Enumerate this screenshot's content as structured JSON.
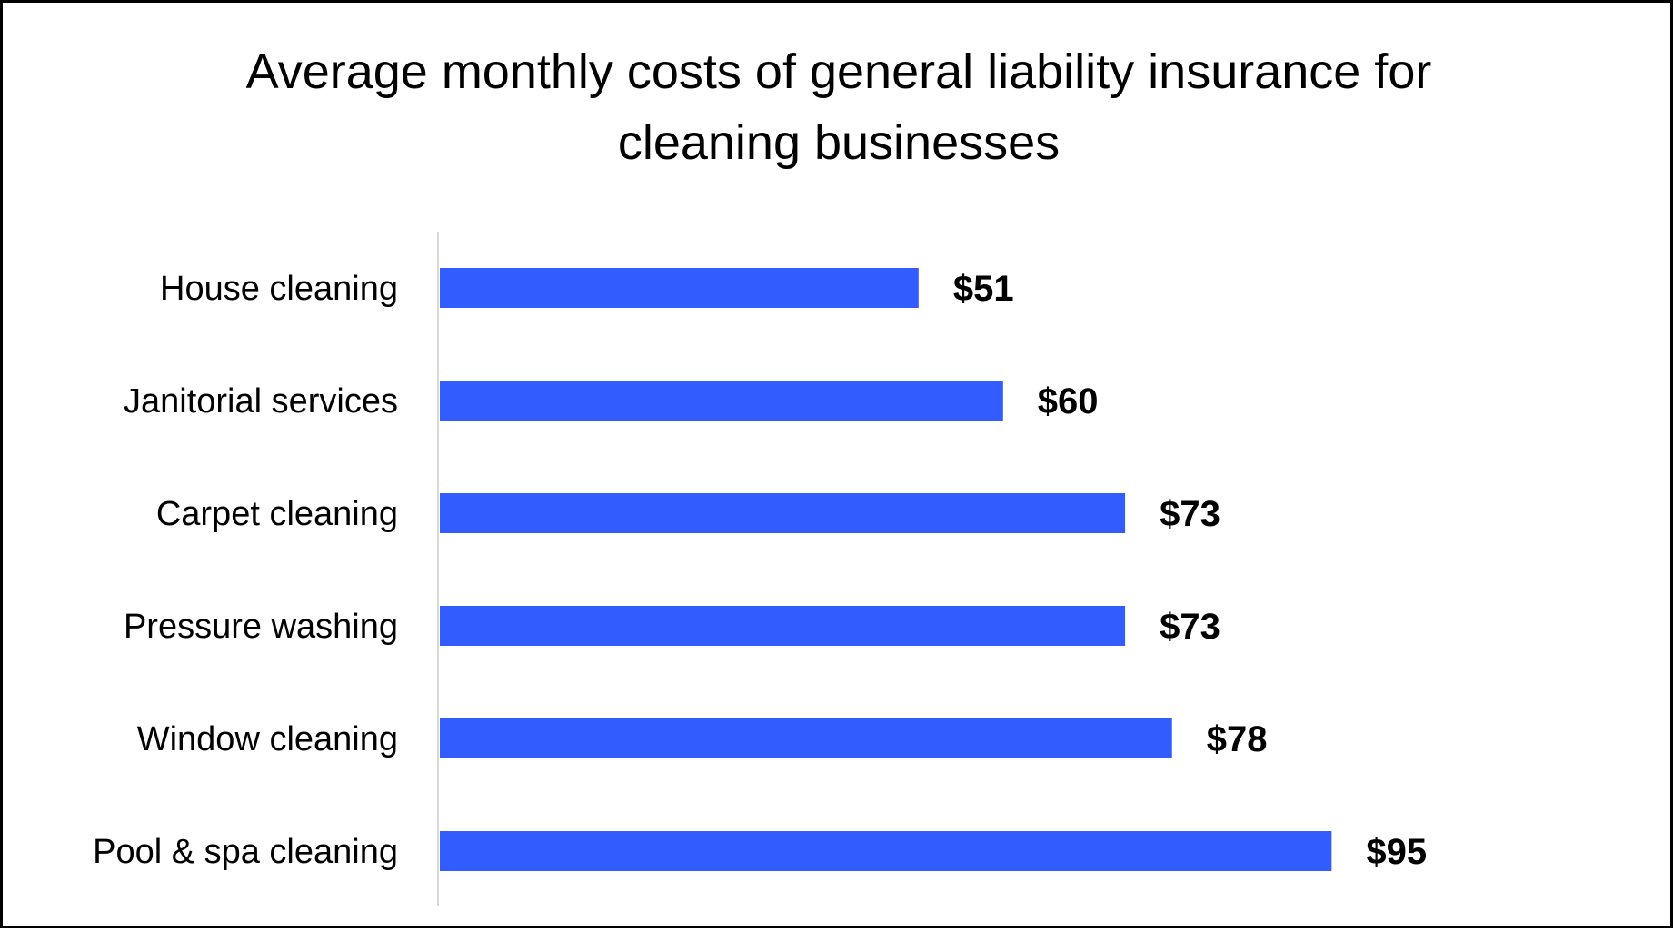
{
  "chart_data": {
    "type": "bar",
    "orientation": "horizontal",
    "title_lines": [
      "Average monthly costs of general liability insurance for",
      "cleaning businesses"
    ],
    "categories": [
      "House cleaning",
      "Janitorial services",
      "Carpet cleaning",
      "Pressure washing",
      "Window cleaning",
      "Pool & spa cleaning"
    ],
    "values": [
      51,
      60,
      73,
      73,
      78,
      95
    ],
    "value_labels": [
      "$51",
      "$60",
      "$73",
      "$73",
      "$78",
      "$95"
    ],
    "xlabel": "",
    "ylabel": "",
    "xlim": [
      0,
      100
    ],
    "grid": false,
    "legend": "none",
    "bar_color": "#335CFF",
    "axis_color": "#D9D9D9"
  }
}
